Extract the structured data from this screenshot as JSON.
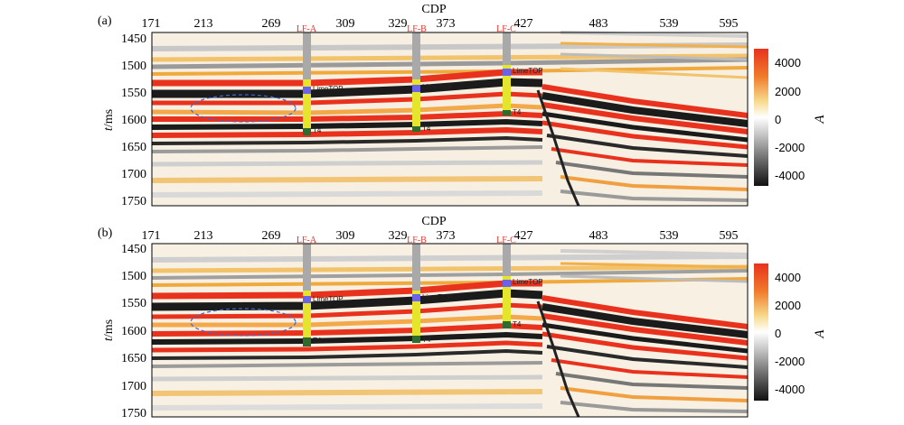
{
  "figure": {
    "panels": [
      {
        "label": "(a)",
        "x_axis_title": "CDP",
        "y_axis_title_italic": "t",
        "y_axis_title_rest": "/ms",
        "x_ticks": [
          "171",
          "213",
          "269",
          "309",
          "329",
          "373",
          "427",
          "483",
          "539",
          "595"
        ],
        "y_ticks": [
          "1450",
          "1500",
          "1550",
          "1600",
          "1650",
          "1700",
          "1750"
        ],
        "wells": [
          {
            "name": "LF-A",
            "horizon_top": "LimeTOP",
            "horizon_base": "T4"
          },
          {
            "name": "LF-B",
            "horizon_top": "LimeTOP",
            "horizon_base": "T4"
          },
          {
            "name": "LF-C",
            "horizon_top": "LimeTOP",
            "horizon_base": "T4"
          }
        ],
        "colorbar": {
          "label": "A",
          "ticks": [
            "4000",
            "2000",
            "0",
            "-2000",
            "-4000"
          ]
        }
      },
      {
        "label": "(b)",
        "x_axis_title": "CDP",
        "y_axis_title_italic": "t",
        "y_axis_title_rest": "/ms",
        "x_ticks": [
          "171",
          "213",
          "269",
          "309",
          "329",
          "373",
          "427",
          "483",
          "539",
          "595"
        ],
        "y_ticks": [
          "1450",
          "1500",
          "1550",
          "1600",
          "1650",
          "1700",
          "1750"
        ],
        "wells": [
          {
            "name": "LF-A",
            "horizon_top": "LimeTOP",
            "horizon_base": "T4"
          },
          {
            "name": "LF-B",
            "horizon_top": "LimeTOP",
            "horizon_base": "T4"
          },
          {
            "name": "LF-C",
            "horizon_top": "LimeTOP",
            "horizon_base": "T4"
          }
        ],
        "colorbar": {
          "label": "A",
          "ticks": [
            "4000",
            "2000",
            "0",
            "-2000",
            "-4000"
          ]
        }
      }
    ],
    "colors": {
      "positive_strong": "#e8321e",
      "positive_weak": "#f3b33a",
      "negative_strong": "#1b1b1b",
      "negative_weak": "#8a8a8a",
      "well_track": "#a9a9a9",
      "well_target": "#e5e52e",
      "well_marker": "#6a63e8",
      "well_base": "#2f6a2f",
      "ellipse": "#3a6ad6",
      "well_name": "#e8322a"
    }
  }
}
